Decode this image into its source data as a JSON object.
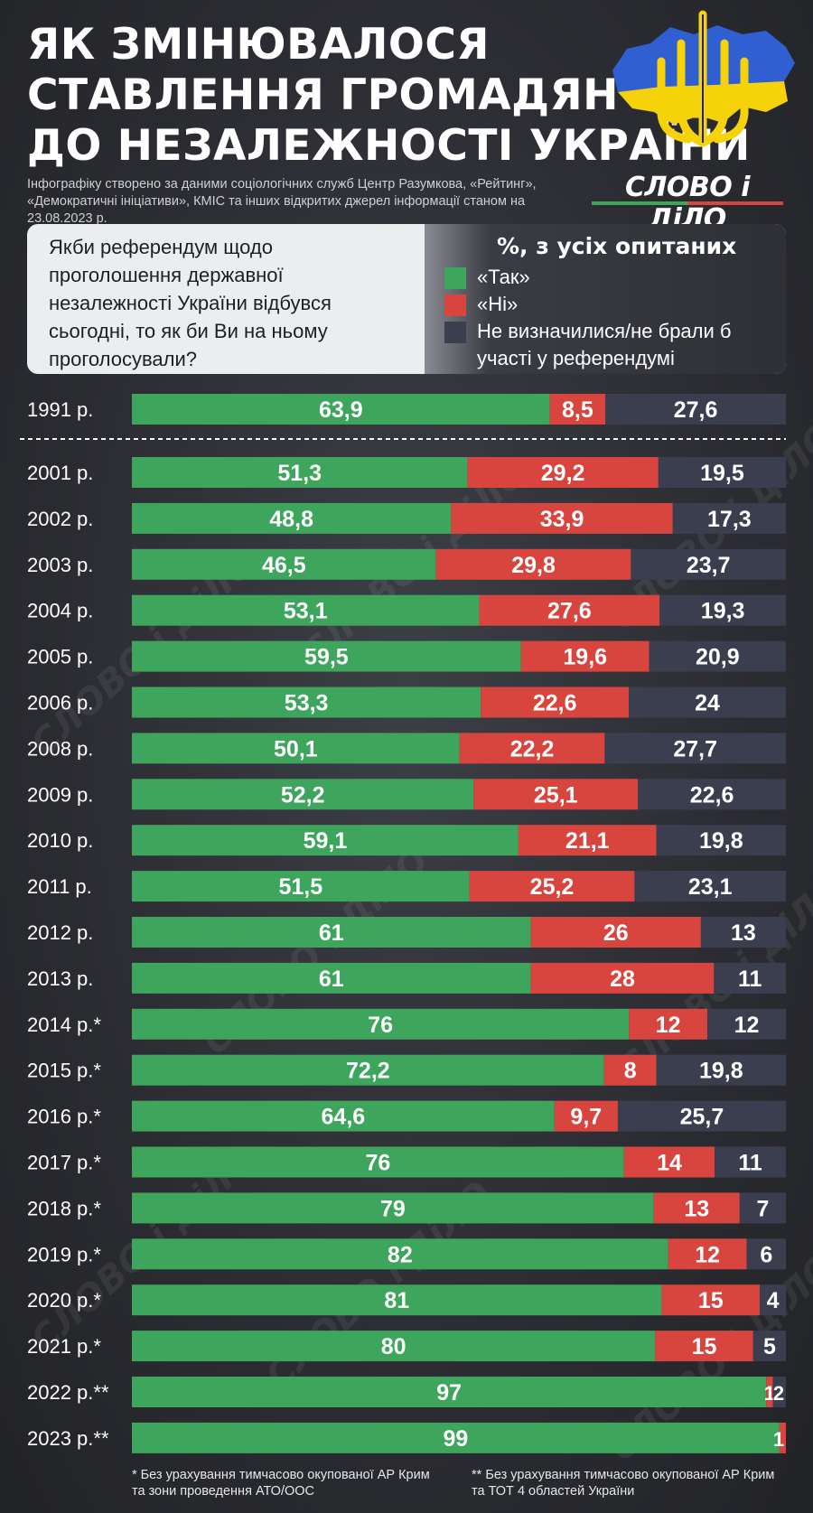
{
  "header": {
    "title_lines": [
      "ЯК ЗМІНЮВАЛОСЯ",
      "СТАВЛЕННЯ ГРОМАДЯН",
      "ДО НЕЗАЛЕЖНОСТІ УКРАЇНИ"
    ],
    "subtitle_lines": [
      "Інфографіку створено за даними соціологічних служб Центр Разумкова, «Рейтинг»,",
      "«Демократичні ініціативи», КМІС та інших відкритих джерел інформації станом на 23.08.2023 р."
    ],
    "brand": "СЛОВО і ДіЛО",
    "emblem_icon": "ukraine-trident-map-icon"
  },
  "panel": {
    "question_lines": [
      "Якби референдум щодо",
      "проголошення державної",
      "незалежності України відбувся",
      "сьогодні, то як би Ви на ньому",
      "проголосували?"
    ],
    "legend_title": "%, з усіх опитаних",
    "legend": [
      {
        "lines": [
          "«Так»"
        ],
        "color": "#3da55c"
      },
      {
        "lines": [
          "«Ні»"
        ],
        "color": "#d8453f"
      },
      {
        "lines": [
          "Не визначилися/не брали б",
          "участі у референдумі"
        ],
        "color": "#3a3e4f"
      }
    ]
  },
  "chart_data": {
    "type": "bar",
    "orientation": "horizontal-stacked-100",
    "categories": [
      "1991 р.",
      "2001 р.",
      "2002 р.",
      "2003 р.",
      "2004 р.",
      "2005 р.",
      "2006 р.",
      "2008 р.",
      "2009 р.",
      "2010 р.",
      "2011 р.",
      "2012 р.",
      "2013 р.",
      "2014 р.*",
      "2015 р.*",
      "2016 р.*",
      "2017 р.*",
      "2018 р.*",
      "2019 р.*",
      "2020 р.*",
      "2021 р.*",
      "2022 р.**",
      "2023 р.**"
    ],
    "series": [
      {
        "name": "«Так»",
        "color": "#3da55c",
        "values": [
          63.9,
          51.3,
          48.8,
          46.5,
          53.1,
          59.5,
          53.3,
          50.1,
          52.2,
          59.1,
          51.5,
          61,
          61,
          76,
          72.2,
          64.6,
          76,
          79,
          82,
          81,
          80,
          97,
          99
        ]
      },
      {
        "name": "«Ні»",
        "color": "#d8453f",
        "values": [
          8.5,
          29.2,
          33.9,
          29.8,
          27.6,
          19.6,
          22.6,
          22.2,
          25.1,
          21.1,
          25.2,
          26,
          28,
          12,
          8,
          9.7,
          14,
          13,
          12,
          15,
          15,
          1,
          1
        ]
      },
      {
        "name": "Не визначилися/не брали б участі у референдумі",
        "color": "#3a3e4f",
        "values": [
          27.6,
          19.5,
          17.3,
          23.7,
          19.3,
          20.9,
          24,
          27.7,
          22.6,
          19.8,
          23.1,
          13,
          11,
          12,
          19.8,
          25.7,
          11,
          7,
          6,
          4,
          5,
          2,
          0
        ]
      }
    ],
    "labels": [
      [
        "63,9",
        "8,5",
        "27,6"
      ],
      [
        "51,3",
        "29,2",
        "19,5"
      ],
      [
        "48,8",
        "33,9",
        "17,3"
      ],
      [
        "46,5",
        "29,8",
        "23,7"
      ],
      [
        "53,1",
        "27,6",
        "19,3"
      ],
      [
        "59,5",
        "19,6",
        "20,9"
      ],
      [
        "53,3",
        "22,6",
        "24"
      ],
      [
        "50,1",
        "22,2",
        "27,7"
      ],
      [
        "52,2",
        "25,1",
        "22,6"
      ],
      [
        "59,1",
        "21,1",
        "19,8"
      ],
      [
        "51,5",
        "25,2",
        "23,1"
      ],
      [
        "61",
        "26",
        "13"
      ],
      [
        "61",
        "28",
        "11"
      ],
      [
        "76",
        "12",
        "12"
      ],
      [
        "72,2",
        "8",
        "19,8"
      ],
      [
        "64,6",
        "9,7",
        "25,7"
      ],
      [
        "76",
        "14",
        "11"
      ],
      [
        "79",
        "13",
        "7"
      ],
      [
        "82",
        "12",
        "6"
      ],
      [
        "81",
        "15",
        "4"
      ],
      [
        "80",
        "15",
        "5"
      ],
      [
        "97",
        "1",
        "2"
      ],
      [
        "99",
        "1",
        ""
      ]
    ],
    "xlim": [
      0,
      100
    ],
    "separator_after": "1991 р.",
    "legend": "top-right"
  },
  "footnotes": {
    "one_lines": [
      "* Без урахування тимчасово окупованої АР Крим",
      "та зони проведення АТО/ООС"
    ],
    "two_lines": [
      "** Без урахування тимчасово окупованої АР Крим",
      "та ТОТ 4 областей України"
    ]
  },
  "watermark": "СЛОВО і ДіЛО"
}
